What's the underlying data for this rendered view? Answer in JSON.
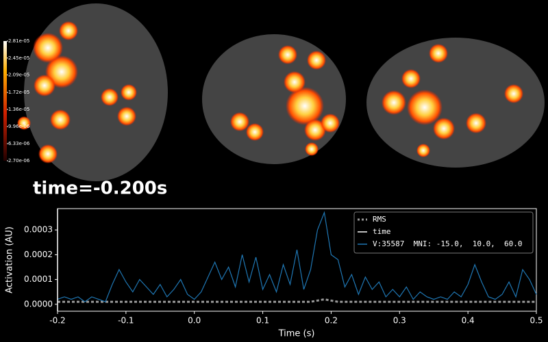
{
  "colorbar": {
    "ticks": [
      {
        "value": 2.81e-05,
        "label": "2.81e-05"
      },
      {
        "value": 2.45e-05,
        "label": "2.45e-05"
      },
      {
        "value": 2.09e-05,
        "label": "2.09e-05"
      },
      {
        "value": 1.72e-05,
        "label": "1.72e-05"
      },
      {
        "value": 1.36e-05,
        "label": "1.36e-05"
      },
      {
        "value": 9.96e-06,
        "label": "9.96e-06"
      },
      {
        "value": 6.33e-06,
        "label": "6.33e-06"
      },
      {
        "value": 2.7e-06,
        "label": "2.70e-06"
      }
    ]
  },
  "time_label": "time=-0.200s",
  "chart_data": {
    "type": "line",
    "x_label": "Time (s)",
    "y_label": "Activation (AU)",
    "x": [
      -0.2,
      -0.19,
      -0.18,
      -0.17,
      -0.16,
      -0.15,
      -0.14,
      -0.13,
      -0.12,
      -0.11,
      -0.1,
      -0.09,
      -0.08,
      -0.07,
      -0.06,
      -0.05,
      -0.04,
      -0.03,
      -0.02,
      -0.01,
      0,
      0.01,
      0.02,
      0.03,
      0.04,
      0.05,
      0.06,
      0.07,
      0.08,
      0.09,
      0.1,
      0.11,
      0.12,
      0.13,
      0.14,
      0.15,
      0.16,
      0.17,
      0.18,
      0.19,
      0.2,
      0.21,
      0.22,
      0.23,
      0.24,
      0.25,
      0.26,
      0.27,
      0.28,
      0.29,
      0.3,
      0.31,
      0.32,
      0.33,
      0.34,
      0.35,
      0.36,
      0.37,
      0.38,
      0.39,
      0.4,
      0.41,
      0.42,
      0.43,
      0.44,
      0.45,
      0.46,
      0.47,
      0.48,
      0.49,
      0.5
    ],
    "series": [
      {
        "name": "RMS",
        "color": "#999999",
        "style": "dashed",
        "values": [
          1e-05,
          1e-05,
          1e-05,
          1e-05,
          1e-05,
          1e-05,
          1e-05,
          1e-05,
          1e-05,
          1e-05,
          1e-05,
          1e-05,
          1e-05,
          1e-05,
          1e-05,
          1e-05,
          1e-05,
          1e-05,
          1e-05,
          1e-05,
          1e-05,
          1e-05,
          1e-05,
          1e-05,
          1e-05,
          1e-05,
          1e-05,
          1e-05,
          1e-05,
          1e-05,
          1e-05,
          1e-05,
          1e-05,
          1e-05,
          1e-05,
          1e-05,
          1e-05,
          1e-05,
          1.5e-05,
          2e-05,
          1.5e-05,
          1e-05,
          1e-05,
          1e-05,
          1e-05,
          1e-05,
          1e-05,
          1e-05,
          1e-05,
          1e-05,
          1e-05,
          1e-05,
          1e-05,
          1e-05,
          1e-05,
          1e-05,
          1e-05,
          1e-05,
          1e-05,
          1e-05,
          1e-05,
          1e-05,
          1e-05,
          1e-05,
          1e-05,
          1e-05,
          1e-05,
          1e-05,
          1e-05,
          1e-05,
          1e-05
        ]
      },
      {
        "name": "V:35587  MNI: -15.0,  10.0,  60.0",
        "color": "#1f77b4",
        "style": "solid",
        "values": [
          2e-05,
          3e-05,
          2e-05,
          3e-05,
          1e-05,
          3e-05,
          2e-05,
          1e-05,
          8e-05,
          0.00014,
          9e-05,
          5e-05,
          0.0001,
          7e-05,
          4e-05,
          8e-05,
          3e-05,
          6e-05,
          0.0001,
          4e-05,
          2e-05,
          5e-05,
          0.00011,
          0.00017,
          0.0001,
          0.00015,
          7e-05,
          0.0002,
          9e-05,
          0.00019,
          6e-05,
          0.00012,
          5e-05,
          0.00016,
          8e-05,
          0.00022,
          6e-05,
          0.00014,
          0.0003,
          0.00037,
          0.0002,
          0.00018,
          7e-05,
          0.00012,
          4e-05,
          0.00011,
          6e-05,
          9e-05,
          3e-05,
          6e-05,
          3e-05,
          7e-05,
          2e-05,
          5e-05,
          3e-05,
          2e-05,
          3e-05,
          2e-05,
          5e-05,
          3e-05,
          8e-05,
          0.00016,
          9e-05,
          3e-05,
          2e-05,
          4e-05,
          9e-05,
          3e-05,
          0.00014,
          0.0001,
          4e-05
        ]
      }
    ],
    "vline": {
      "name": "time",
      "x": -0.2,
      "color": "#ffffff"
    },
    "xlim": [
      -0.2,
      0.5
    ],
    "xticks": [
      -0.2,
      -0.1,
      {
        "value": 0,
        "label": "0.0"
      },
      0.1,
      0.2,
      0.3,
      0.4,
      0.5
    ],
    "ylim": [
      -2.8e-05,
      0.000386
    ],
    "yticks": [
      {
        "value": 0,
        "label": "0.0000"
      },
      {
        "value": 0.0001,
        "label": "0.0001"
      },
      {
        "value": 0.0002,
        "label": "0.0002"
      },
      {
        "value": 0.0003,
        "label": "0.0003"
      }
    ]
  }
}
